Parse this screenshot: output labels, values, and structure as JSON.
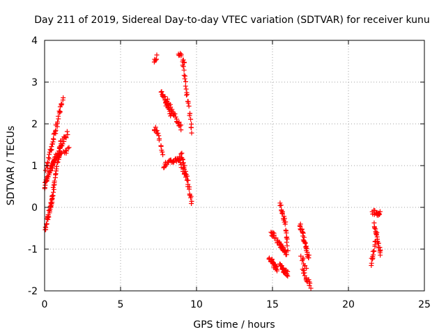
{
  "chart_data": {
    "type": "scatter",
    "title": "Day 211 of 2019, Sidereal Day-to-day VTEC variation (SDTVAR) for receiver kunu",
    "xlabel": "GPS time / hours",
    "ylabel": "SDTVAR / TECUs",
    "xlim": [
      0,
      25
    ],
    "ylim": [
      -2,
      4
    ],
    "xticks": [
      0,
      5,
      10,
      15,
      20,
      25
    ],
    "yticks": [
      -2,
      -1,
      0,
      1,
      2,
      3,
      4
    ],
    "xtick_labels": [
      "0",
      "5",
      "10",
      "15",
      "20",
      "25"
    ],
    "ytick_labels": [
      "-2",
      "-1",
      "0",
      "1",
      "2",
      "3",
      "4"
    ],
    "grid": true,
    "marker": "+",
    "marker_color": "#ff0000",
    "segments": [
      {
        "x0": 0.0,
        "x1": 0.6,
        "y0": 0.5,
        "y1": 1.1,
        "n": 30
      },
      {
        "x0": 0.1,
        "x1": 1.2,
        "y0": 0.9,
        "y1": 2.6,
        "n": 40
      },
      {
        "x0": 0.0,
        "x1": 0.5,
        "y0": -0.6,
        "y1": 0.2,
        "n": 30
      },
      {
        "x0": 0.4,
        "x1": 1.1,
        "y0": 0.0,
        "y1": 1.6,
        "n": 35
      },
      {
        "x0": 0.5,
        "x1": 1.5,
        "y0": 1.0,
        "y1": 1.8,
        "n": 30
      },
      {
        "x0": 0.7,
        "x1": 1.6,
        "y0": 1.2,
        "y1": 1.4,
        "n": 15
      },
      {
        "x0": 7.2,
        "x1": 7.4,
        "y0": 3.5,
        "y1": 3.6,
        "n": 6
      },
      {
        "x0": 7.2,
        "x1": 7.4,
        "y0": 1.9,
        "y1": 1.8,
        "n": 6
      },
      {
        "x0": 7.4,
        "x1": 7.8,
        "y0": 1.8,
        "y1": 1.3,
        "n": 10
      },
      {
        "x0": 7.7,
        "x1": 8.3,
        "y0": 2.8,
        "y1": 2.2,
        "n": 25
      },
      {
        "x0": 8.0,
        "x1": 9.0,
        "y0": 2.6,
        "y1": 1.9,
        "n": 25
      },
      {
        "x0": 7.8,
        "x1": 9.0,
        "y0": 1.0,
        "y1": 1.2,
        "n": 30
      },
      {
        "x0": 8.8,
        "x1": 9.2,
        "y0": 3.7,
        "y1": 3.5,
        "n": 10
      },
      {
        "x0": 9.1,
        "x1": 9.7,
        "y0": 3.5,
        "y1": 1.8,
        "n": 25
      },
      {
        "x0": 9.0,
        "x1": 9.7,
        "y0": 1.3,
        "y1": 0.1,
        "n": 25
      },
      {
        "x0": 8.8,
        "x1": 9.4,
        "y0": 1.1,
        "y1": 0.7,
        "n": 12
      },
      {
        "x0": 14.8,
        "x1": 15.3,
        "y0": -1.2,
        "y1": -1.5,
        "n": 25
      },
      {
        "x0": 14.9,
        "x1": 15.2,
        "y0": -0.6,
        "y1": -0.7,
        "n": 10
      },
      {
        "x0": 15.3,
        "x1": 15.9,
        "y0": -0.8,
        "y1": -1.1,
        "n": 25
      },
      {
        "x0": 15.5,
        "x1": 15.8,
        "y0": 0.1,
        "y1": -0.3,
        "n": 12
      },
      {
        "x0": 15.5,
        "x1": 16.0,
        "y0": -1.4,
        "y1": -1.6,
        "n": 25
      },
      {
        "x0": 15.8,
        "x1": 16.0,
        "y0": -0.3,
        "y1": -1.0,
        "n": 12
      },
      {
        "x0": 16.8,
        "x1": 17.4,
        "y0": -0.4,
        "y1": -1.2,
        "n": 30
      },
      {
        "x0": 17.0,
        "x1": 17.5,
        "y0": -1.5,
        "y1": -1.9,
        "n": 15
      },
      {
        "x0": 16.9,
        "x1": 17.2,
        "y0": -1.2,
        "y1": -1.4,
        "n": 8
      },
      {
        "x0": 21.5,
        "x1": 21.8,
        "y0": -1.35,
        "y1": -0.8,
        "n": 15
      },
      {
        "x0": 21.6,
        "x1": 22.1,
        "y0": -0.1,
        "y1": -0.15,
        "n": 15
      },
      {
        "x0": 21.7,
        "x1": 22.1,
        "y0": -0.4,
        "y1": -1.1,
        "n": 25
      }
    ]
  }
}
